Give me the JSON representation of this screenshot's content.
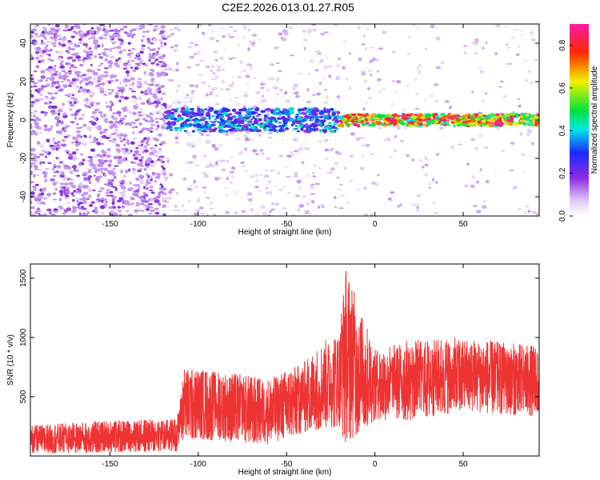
{
  "title": "C2E2.2026.013.01.27.R05",
  "chart_data": [
    {
      "type": "heatmap",
      "xlabel": "Height of straight line (km)",
      "ylabel": "Frequency (Hz)",
      "xlim": [
        -195,
        93
      ],
      "ylim": [
        -50,
        50
      ],
      "xticks": [
        -150,
        -100,
        -50,
        0,
        50
      ],
      "yticks": [
        -40,
        -20,
        0,
        20,
        40
      ],
      "colorbar": {
        "label": "Normalized spectral amplitude",
        "range": [
          0.0,
          0.9
        ],
        "ticks": [
          "0.0",
          "0.2",
          "0.4",
          "0.6",
          "0.8"
        ],
        "colormap": "rainbow (light purple → blue → cyan → green → yellow → red → magenta)"
      },
      "regions": [
        {
          "x_range": [
            -195,
            -118
          ],
          "description": "scattered noise across full frequency band",
          "amplitude": [
            0.05,
            0.2
          ]
        },
        {
          "x_range": [
            -118,
            -20
          ],
          "freq_center": 0,
          "freq_halfwidth": 6,
          "amplitude": [
            0.15,
            0.45
          ]
        },
        {
          "x_range": [
            -20,
            93
          ],
          "freq_center": 0,
          "freq_halfwidth": 3,
          "amplitude": [
            0.4,
            0.9
          ]
        }
      ],
      "grid": false
    },
    {
      "type": "line",
      "xlabel": "Height of straight line (km)",
      "ylabel": "SNR (10 * v/v)",
      "xlim": [
        -195,
        93
      ],
      "ylim": [
        0,
        1620
      ],
      "xticks": [
        -150,
        -100,
        -50,
        0,
        50
      ],
      "yticks": [
        500,
        1000,
        1500
      ],
      "series": [
        {
          "color": "#ee3333",
          "envelope": [
            {
              "x": -195,
              "low": 20,
              "high": 260
            },
            {
              "x": -150,
              "low": 30,
              "high": 300
            },
            {
              "x": -112,
              "low": 40,
              "high": 320
            },
            {
              "x": -108,
              "low": 150,
              "high": 750
            },
            {
              "x": -80,
              "low": 120,
              "high": 700
            },
            {
              "x": -60,
              "low": 100,
              "high": 650
            },
            {
              "x": -40,
              "low": 200,
              "high": 800
            },
            {
              "x": -20,
              "low": 250,
              "high": 1100
            },
            {
              "x": -17,
              "low": 100,
              "high": 1620
            },
            {
              "x": 0,
              "low": 300,
              "high": 900
            },
            {
              "x": 20,
              "low": 300,
              "high": 980
            },
            {
              "x": 50,
              "low": 380,
              "high": 1000
            },
            {
              "x": 93,
              "low": 330,
              "high": 930
            }
          ]
        }
      ],
      "grid": false
    }
  ]
}
